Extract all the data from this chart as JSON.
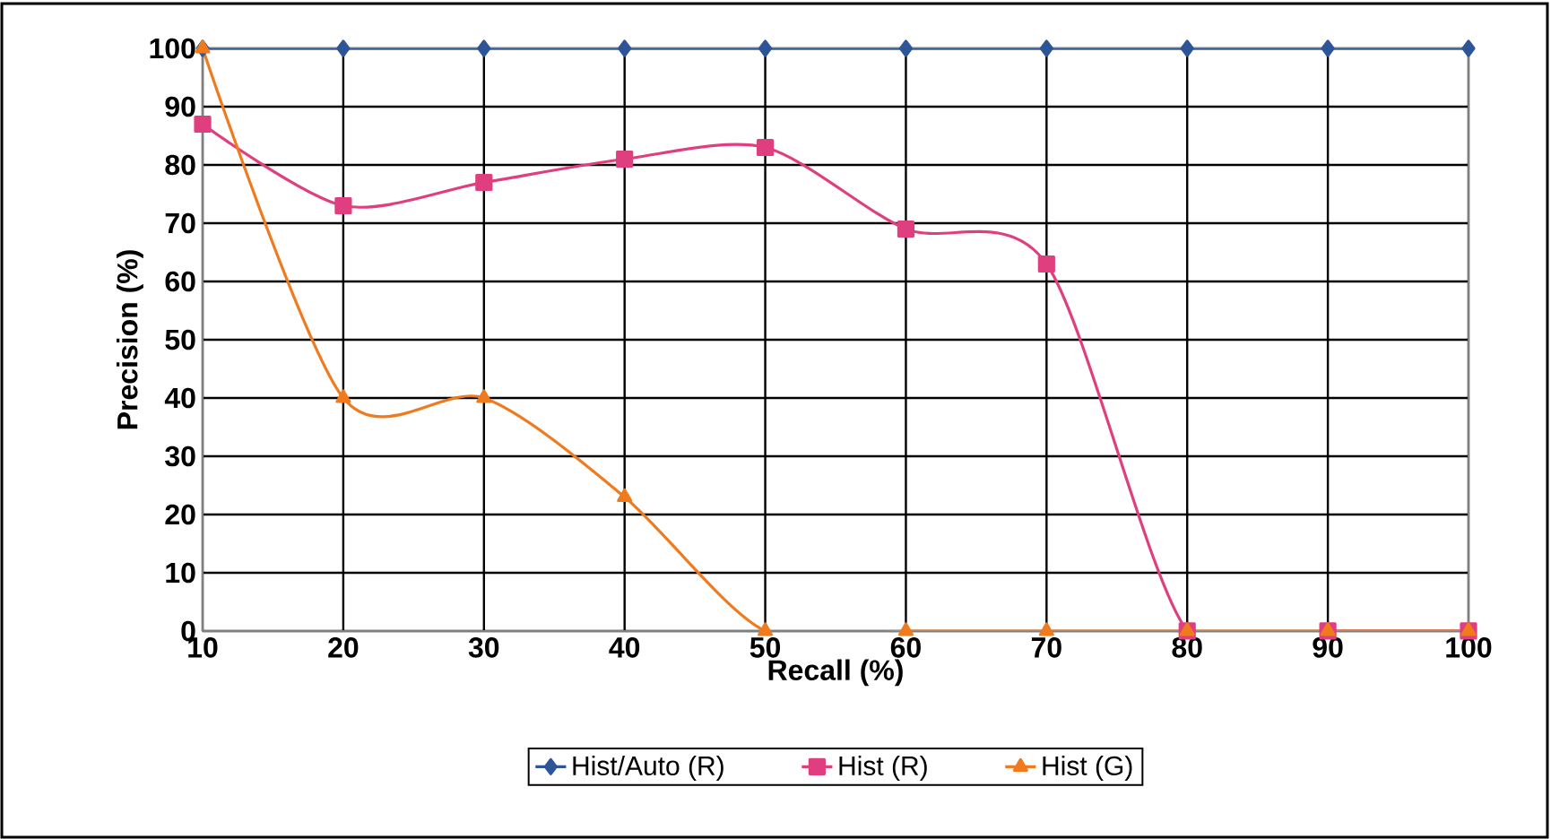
{
  "chart_data": {
    "type": "line",
    "xlabel": "Recall (%)",
    "ylabel": "Precision (%)",
    "x": [
      10,
      20,
      30,
      40,
      50,
      60,
      70,
      80,
      90,
      100
    ],
    "series": [
      {
        "name": "Hist/Auto (R)",
        "color": "#2e5597",
        "marker": "diamond",
        "values": [
          100,
          100,
          100,
          100,
          100,
          100,
          100,
          100,
          100,
          100
        ]
      },
      {
        "name": "Hist (R)",
        "color": "#df3f7f",
        "marker": "square",
        "values": [
          87,
          73,
          77,
          81,
          83,
          69,
          63,
          0,
          0,
          0
        ]
      },
      {
        "name": "Hist (G)",
        "color": "#f07a1e",
        "marker": "triangle",
        "values": [
          100,
          40,
          40,
          23,
          0,
          0,
          0,
          0,
          0,
          0
        ]
      }
    ],
    "xlim": [
      10,
      100
    ],
    "xticks": [
      10,
      20,
      30,
      40,
      50,
      60,
      70,
      80,
      90,
      100
    ],
    "ylim": [
      0,
      100
    ],
    "yticks": [
      0,
      10,
      20,
      30,
      40,
      50,
      60,
      70,
      80,
      90,
      100
    ],
    "grid": true,
    "legend": "bottom",
    "line_style": "solid"
  }
}
